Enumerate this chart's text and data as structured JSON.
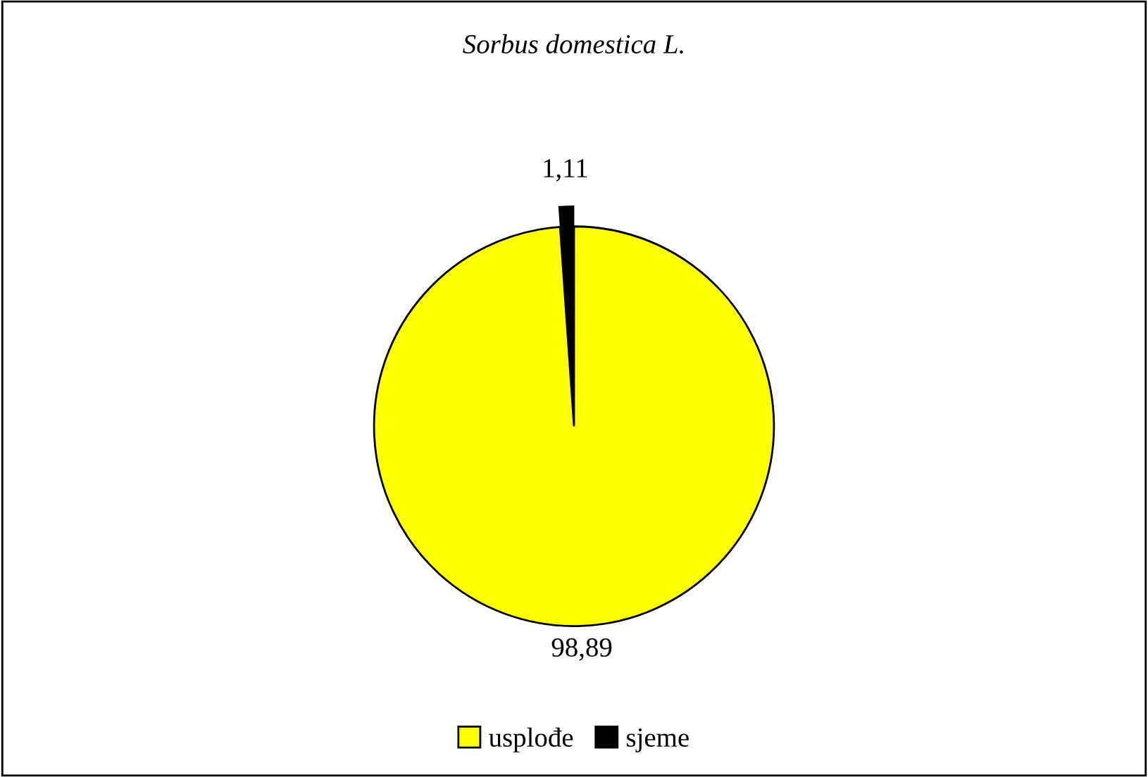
{
  "chart_data": {
    "type": "pie",
    "title": "Sorbus domestica L.",
    "categories": [
      "usplođe",
      "sjeme"
    ],
    "values": [
      98.89,
      1.11
    ],
    "colors": [
      "#ffff00",
      "#000000"
    ],
    "value_labels": [
      "98,89",
      "1,11"
    ],
    "legend": "bottom"
  }
}
